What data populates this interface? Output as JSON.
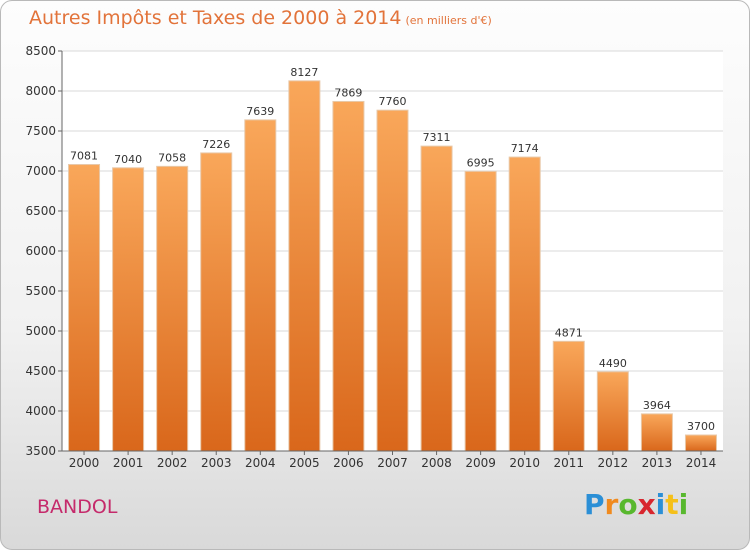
{
  "chart_data": {
    "type": "bar",
    "title": "Autres Impôts et Taxes de 2000 à 2014",
    "subtitle": "(en milliers d'€)",
    "categories": [
      "2000",
      "2001",
      "2002",
      "2003",
      "2004",
      "2005",
      "2006",
      "2007",
      "2008",
      "2009",
      "2010",
      "2011",
      "2012",
      "2013",
      "2014"
    ],
    "values": [
      7081,
      7040,
      7058,
      7226,
      7639,
      8127,
      7869,
      7760,
      7311,
      6995,
      7174,
      4871,
      4490,
      3964,
      3700
    ],
    "ylim": [
      3500,
      8500
    ],
    "yticks": [
      "3500",
      "4000",
      "4500",
      "5000",
      "5500",
      "6000",
      "6500",
      "7000",
      "7500",
      "8000",
      "8500"
    ],
    "grid": true,
    "bar_color": "#f08a2e",
    "xlabel": "",
    "ylabel": ""
  },
  "commune": "BANDOL",
  "logo": {
    "text": "Proxiti",
    "letters": [
      "P",
      "r",
      "o",
      "x",
      "i",
      "t",
      "i"
    ],
    "colors": [
      "#2b8fd6",
      "#f08a1e",
      "#58b82e",
      "#d8262e",
      "#2b8fd6",
      "#f5c01a",
      "#58b82e"
    ]
  },
  "colors": {
    "title": "#e2733a",
    "commune": "#c52a6b",
    "plot_background": "#ffffff",
    "grid": "#d9d9d9"
  }
}
